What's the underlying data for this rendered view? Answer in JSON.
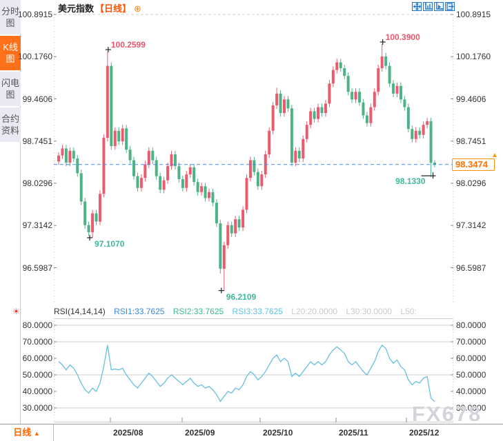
{
  "sidebar": {
    "tabs": [
      {
        "label": "分时图",
        "active": false
      },
      {
        "label": "K线图",
        "active": true
      },
      {
        "label": "闪电图",
        "active": false
      },
      {
        "label": "合约资料",
        "active": false
      }
    ]
  },
  "header": {
    "title": "美元指数",
    "period_tag": "【日线】",
    "add_icon": "⊕"
  },
  "toolbar": {
    "icons": [
      "crosshair-move",
      "y-axis-scale",
      "x-axis-scale",
      "restore-view"
    ]
  },
  "colors": {
    "up_candle": "#ea5b6e",
    "down_candle": "#4eb287",
    "accent_orange": "#ff6600",
    "dashed_price_line": "#3a8be8",
    "rsi_line": "#68bfdf",
    "annotation_high": "#e8566d",
    "annotation_low": "#3cb89b",
    "active_tab": "#ff7119",
    "watermark": "#d3d3dc"
  },
  "price_axis": {
    "labels": [
      "100.8915",
      "100.1760",
      "99.4606",
      "98.7451",
      "98.0296",
      "97.3142",
      "96.5987"
    ]
  },
  "rsi_axis": {
    "labels": [
      "80.0000",
      "70.0000",
      "60.0000",
      "50.0000",
      "40.0000",
      "30.0000"
    ]
  },
  "price_box": {
    "value": "98.3474",
    "arrow": "▲"
  },
  "rsi_header": {
    "name": "RSI(14,14,14)",
    "rsi1": "RSI1:33.7625",
    "rsi2": "RSI2:33.7625",
    "rsi3": "RSI3:33.7625",
    "l20": "L20:20.0000",
    "l30": "L30:30.0000",
    "l50": "L50:",
    "settings_icon": "☀"
  },
  "footer": {
    "period": "日线",
    "arrow": "▲"
  },
  "watermark": "FX678",
  "chart_data": [
    {
      "type": "candlestick",
      "title": "美元指数 日线 (USD Index daily)",
      "ylim": [
        96.0,
        100.95
      ],
      "y_ticks": [
        100.8915,
        100.176,
        99.4606,
        98.7451,
        98.0296,
        97.3142,
        96.5987
      ],
      "x_labels": [
        "2025/08",
        "2025/09",
        "2025/10",
        "2025/11",
        "2025/12"
      ],
      "current_price": 98.3474,
      "annotations": [
        {
          "label": "100.2599",
          "index": 13,
          "price": 100.2599,
          "kind": "high",
          "place": "tr"
        },
        {
          "label": "100.3900",
          "index": 86,
          "price": 100.39,
          "kind": "high",
          "place": "tr"
        },
        {
          "label": "97.1070",
          "index": 9,
          "price": 97.107,
          "kind": "low",
          "place": "br"
        },
        {
          "label": "96.2109",
          "index": 44,
          "price": 96.2109,
          "kind": "low",
          "place": "br"
        },
        {
          "label": "98.1330",
          "index": 99,
          "price": 98.133,
          "kind": "low",
          "place": "ll"
        }
      ],
      "candles": [
        [
          98.4,
          98.56,
          98.34,
          98.5
        ],
        [
          98.5,
          98.68,
          98.44,
          98.62
        ],
        [
          98.62,
          98.68,
          98.32,
          98.38
        ],
        [
          98.38,
          98.64,
          98.32,
          98.58
        ],
        [
          98.58,
          98.64,
          98.39,
          98.45
        ],
        [
          98.45,
          98.51,
          98.14,
          98.2
        ],
        [
          98.2,
          98.26,
          97.66,
          97.72
        ],
        [
          97.72,
          97.78,
          97.26,
          97.32
        ],
        [
          97.32,
          97.38,
          97.14,
          97.2
        ],
        [
          97.2,
          97.58,
          97.107,
          97.52
        ],
        [
          97.52,
          97.58,
          97.32,
          97.38
        ],
        [
          97.38,
          97.91,
          97.32,
          97.85
        ],
        [
          97.85,
          98.86,
          97.79,
          98.8
        ],
        [
          98.8,
          100.2599,
          98.74,
          100.02
        ],
        [
          100.02,
          100.08,
          98.6,
          98.66
        ],
        [
          98.66,
          98.98,
          98.6,
          98.92
        ],
        [
          98.92,
          98.98,
          98.68,
          98.74
        ],
        [
          98.74,
          99.02,
          98.68,
          98.96
        ],
        [
          98.96,
          99.02,
          98.54,
          98.6
        ],
        [
          98.6,
          98.66,
          98.36,
          98.42
        ],
        [
          98.42,
          98.48,
          98.09,
          98.15
        ],
        [
          98.15,
          98.21,
          97.89,
          97.95
        ],
        [
          97.95,
          98.18,
          97.89,
          98.12
        ],
        [
          98.12,
          98.41,
          98.06,
          98.35
        ],
        [
          98.35,
          98.64,
          98.29,
          98.58
        ],
        [
          98.58,
          98.64,
          98.36,
          98.42
        ],
        [
          98.42,
          98.48,
          98.09,
          98.15
        ],
        [
          98.15,
          98.21,
          97.86,
          97.92
        ],
        [
          97.92,
          98.14,
          97.86,
          98.08
        ],
        [
          98.08,
          98.38,
          98.02,
          98.32
        ],
        [
          98.32,
          98.58,
          98.26,
          98.52
        ],
        [
          98.52,
          98.58,
          98.26,
          98.32
        ],
        [
          98.32,
          98.38,
          98.04,
          98.1
        ],
        [
          98.1,
          98.16,
          97.89,
          97.95
        ],
        [
          97.95,
          98.24,
          97.89,
          98.18
        ],
        [
          98.18,
          98.36,
          98.12,
          98.3
        ],
        [
          98.3,
          98.36,
          97.99,
          98.05
        ],
        [
          98.05,
          98.11,
          97.82,
          97.88
        ],
        [
          97.88,
          98.04,
          97.82,
          97.98
        ],
        [
          97.98,
          98.04,
          97.72,
          97.78
        ],
        [
          97.78,
          97.94,
          97.72,
          97.88
        ],
        [
          97.88,
          97.94,
          97.64,
          97.7
        ],
        [
          97.7,
          97.76,
          97.29,
          97.35
        ],
        [
          97.35,
          97.41,
          96.5,
          96.58
        ],
        [
          96.58,
          97.04,
          96.2109,
          96.98
        ],
        [
          96.98,
          97.38,
          96.92,
          97.32
        ],
        [
          97.32,
          97.38,
          97.12,
          97.18
        ],
        [
          97.18,
          97.48,
          97.12,
          97.42
        ],
        [
          97.42,
          97.48,
          97.22,
          97.28
        ],
        [
          97.28,
          97.64,
          97.22,
          97.58
        ],
        [
          97.58,
          98.18,
          97.52,
          98.12
        ],
        [
          98.12,
          98.48,
          98.06,
          98.42
        ],
        [
          98.42,
          98.48,
          98.16,
          98.22
        ],
        [
          98.22,
          98.28,
          97.92,
          97.98
        ],
        [
          97.98,
          98.24,
          97.92,
          98.18
        ],
        [
          98.18,
          98.58,
          98.12,
          98.52
        ],
        [
          98.52,
          98.98,
          98.46,
          98.92
        ],
        [
          98.92,
          99.41,
          98.86,
          99.35
        ],
        [
          99.35,
          99.65,
          99.29,
          99.55
        ],
        [
          99.55,
          99.61,
          99.16,
          99.22
        ],
        [
          99.22,
          99.51,
          99.16,
          99.45
        ],
        [
          99.45,
          99.51,
          99.24,
          99.3
        ],
        [
          99.3,
          99.36,
          98.32,
          98.38
        ],
        [
          98.38,
          98.64,
          98.32,
          98.58
        ],
        [
          98.58,
          98.64,
          98.39,
          98.45
        ],
        [
          98.45,
          98.84,
          98.39,
          98.78
        ],
        [
          98.78,
          99.08,
          98.72,
          99.02
        ],
        [
          99.02,
          99.31,
          98.96,
          99.25
        ],
        [
          99.25,
          99.31,
          99.06,
          99.12
        ],
        [
          99.12,
          99.38,
          99.06,
          99.32
        ],
        [
          99.32,
          99.38,
          99.16,
          99.22
        ],
        [
          99.22,
          99.44,
          99.16,
          99.38
        ],
        [
          99.38,
          99.78,
          99.32,
          99.72
        ],
        [
          99.72,
          100.01,
          99.66,
          99.95
        ],
        [
          99.95,
          100.14,
          99.89,
          100.08
        ],
        [
          100.08,
          100.14,
          99.92,
          99.98
        ],
        [
          99.98,
          100.04,
          99.79,
          99.85
        ],
        [
          99.85,
          99.91,
          99.52,
          99.58
        ],
        [
          99.58,
          99.64,
          99.39,
          99.45
        ],
        [
          99.45,
          99.64,
          99.39,
          99.58
        ],
        [
          99.58,
          99.64,
          99.34,
          99.4
        ],
        [
          99.4,
          99.46,
          99.12,
          99.18
        ],
        [
          99.18,
          99.24,
          98.99,
          99.05
        ],
        [
          99.05,
          99.38,
          98.99,
          99.32
        ],
        [
          99.32,
          99.64,
          99.26,
          99.58
        ],
        [
          99.58,
          100.04,
          99.52,
          99.98
        ],
        [
          99.98,
          100.39,
          99.92,
          100.18
        ],
        [
          100.18,
          100.24,
          99.96,
          100.02
        ],
        [
          100.02,
          100.08,
          99.66,
          99.72
        ],
        [
          99.72,
          99.78,
          99.49,
          99.55
        ],
        [
          99.55,
          99.74,
          99.49,
          99.68
        ],
        [
          99.68,
          99.74,
          99.39,
          99.45
        ],
        [
          99.45,
          99.51,
          99.26,
          99.32
        ],
        [
          99.32,
          99.38,
          98.89,
          98.95
        ],
        [
          98.95,
          99.01,
          98.72,
          98.78
        ],
        [
          98.78,
          98.98,
          98.72,
          98.92
        ],
        [
          98.92,
          98.98,
          98.79,
          98.85
        ],
        [
          98.85,
          99.08,
          98.79,
          99.02
        ],
        [
          99.02,
          99.14,
          98.96,
          99.08
        ],
        [
          99.08,
          99.14,
          98.133,
          98.38
        ],
        [
          98.38,
          98.42,
          98.3,
          98.3474
        ]
      ]
    },
    {
      "type": "line",
      "name": "RSI(14,14,14)",
      "rsi1": 33.7625,
      "rsi2": 33.7625,
      "rsi3": 33.7625,
      "levels": {
        "L20": 20.0,
        "L30": 30.0,
        "L50": 50.0
      },
      "ylim": [
        25,
        85
      ],
      "y_ticks": [
        80,
        70,
        60,
        50,
        40,
        30
      ],
      "values": [
        58,
        56,
        53,
        56,
        54,
        50,
        45,
        41,
        39,
        42,
        40,
        45,
        55,
        68,
        53,
        53.5,
        53,
        54,
        50,
        47,
        44,
        42,
        45,
        48,
        51,
        49,
        46,
        43,
        45,
        48,
        50,
        48,
        46,
        44,
        46,
        48,
        45,
        43,
        44,
        42,
        43,
        41,
        38,
        34,
        37,
        40,
        39,
        42,
        41,
        44,
        49,
        52,
        50,
        47,
        49,
        52,
        56,
        60,
        62,
        58,
        60,
        58,
        49,
        51,
        49,
        52,
        55,
        58,
        56,
        58,
        56,
        58,
        62,
        65,
        67,
        65,
        63,
        58,
        56,
        58,
        55,
        52,
        50,
        54,
        58,
        64,
        68,
        66,
        60,
        57,
        59,
        55,
        53,
        47,
        44,
        46,
        45,
        48,
        49,
        36,
        33.76
      ]
    }
  ]
}
